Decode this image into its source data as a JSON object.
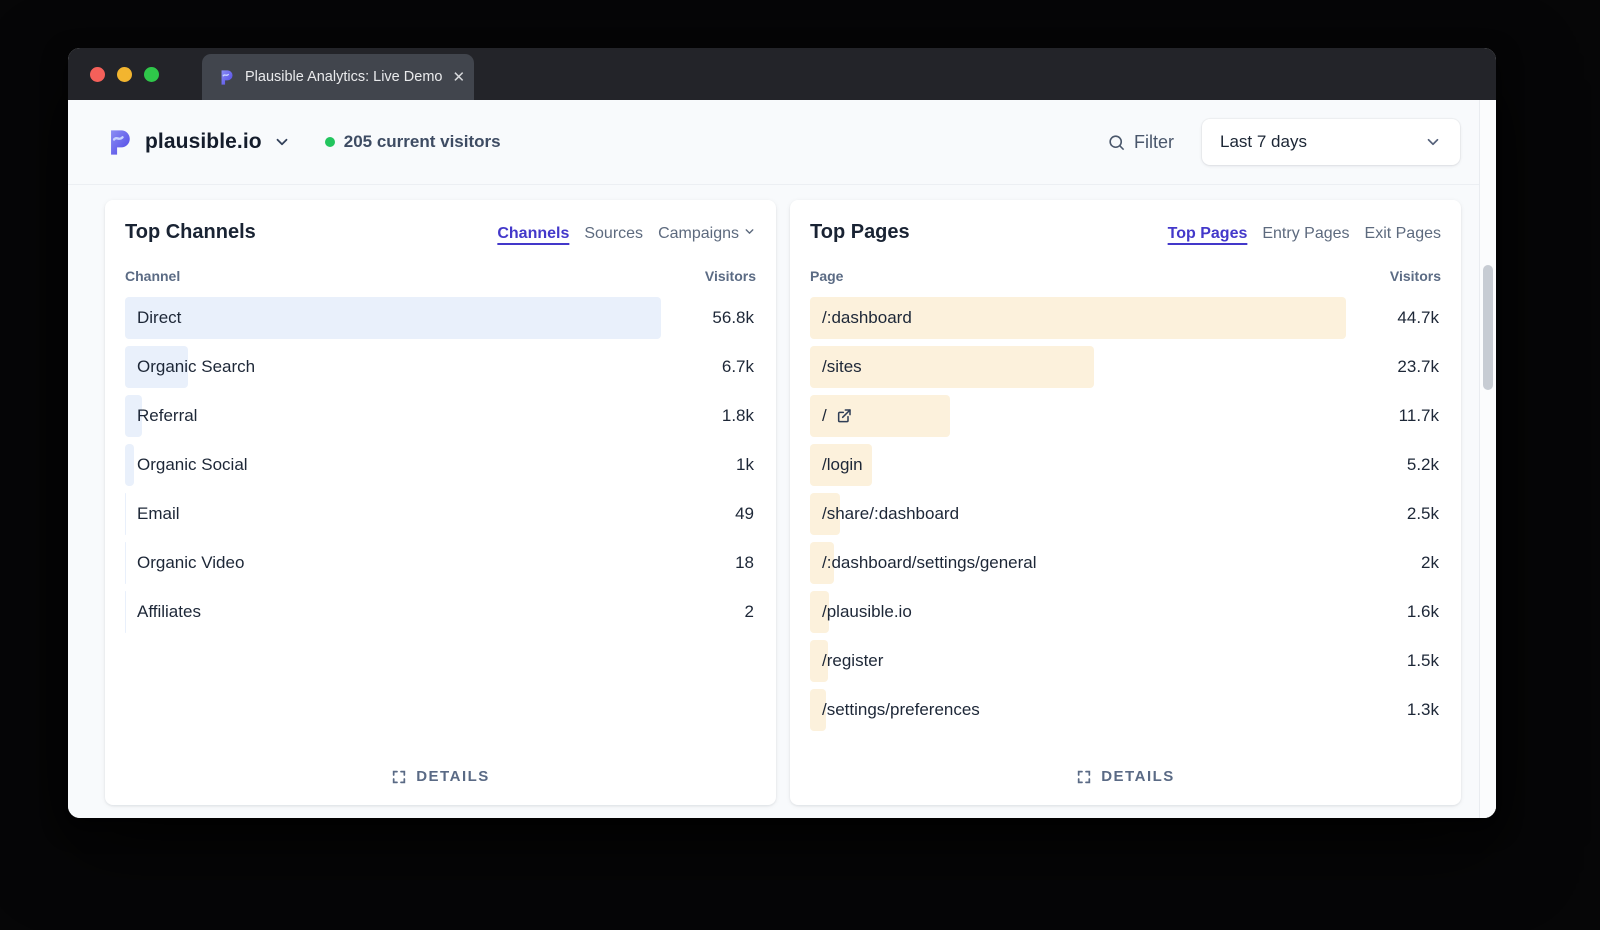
{
  "browser": {
    "tab_title": "Plausible Analytics: Live Demo",
    "tab_close": "✕"
  },
  "header": {
    "site_name": "plausible.io",
    "current_visitors": "205 current visitors",
    "filter_label": "Filter",
    "date_range": "Last 7 days"
  },
  "colors": {
    "accent": "#4338ca",
    "channel_bar": "#e9f0fb",
    "page_bar": "#fcf1dc",
    "live_dot": "#22c55e"
  },
  "cards": {
    "channels": {
      "title": "Top Channels",
      "tabs": [
        {
          "label": "Channels",
          "active": true
        },
        {
          "label": "Sources",
          "active": false
        },
        {
          "label": "Campaigns",
          "active": false,
          "chevron": true
        }
      ],
      "col_left": "Channel",
      "col_right": "Visitors",
      "details_label": "DETAILS",
      "bar_color": "#e9f0fb",
      "max": 56800,
      "rows": [
        {
          "label": "Direct",
          "value": 56800,
          "display": "56.8k"
        },
        {
          "label": "Organic Search",
          "value": 6700,
          "display": "6.7k"
        },
        {
          "label": "Referral",
          "value": 1800,
          "display": "1.8k"
        },
        {
          "label": "Organic Social",
          "value": 1000,
          "display": "1k"
        },
        {
          "label": "Email",
          "value": 49,
          "display": "49"
        },
        {
          "label": "Organic Video",
          "value": 18,
          "display": "18"
        },
        {
          "label": "Affiliates",
          "value": 2,
          "display": "2"
        }
      ]
    },
    "pages": {
      "title": "Top Pages",
      "tabs": [
        {
          "label": "Top Pages",
          "active": true
        },
        {
          "label": "Entry Pages",
          "active": false
        },
        {
          "label": "Exit Pages",
          "active": false
        }
      ],
      "col_left": "Page",
      "col_right": "Visitors",
      "details_label": "DETAILS",
      "bar_color": "#fcf1dc",
      "max": 44700,
      "rows": [
        {
          "label": "/:dashboard",
          "value": 44700,
          "display": "44.7k"
        },
        {
          "label": "/sites",
          "value": 23700,
          "display": "23.7k"
        },
        {
          "label": "/",
          "value": 11700,
          "display": "11.7k",
          "external": true
        },
        {
          "label": "/login",
          "value": 5200,
          "display": "5.2k"
        },
        {
          "label": "/share/:dashboard",
          "value": 2500,
          "display": "2.5k"
        },
        {
          "label": "/:dashboard/settings/general",
          "value": 2000,
          "display": "2k"
        },
        {
          "label": "/plausible.io",
          "value": 1600,
          "display": "1.6k"
        },
        {
          "label": "/register",
          "value": 1500,
          "display": "1.5k"
        },
        {
          "label": "/settings/preferences",
          "value": 1300,
          "display": "1.3k"
        }
      ]
    }
  }
}
